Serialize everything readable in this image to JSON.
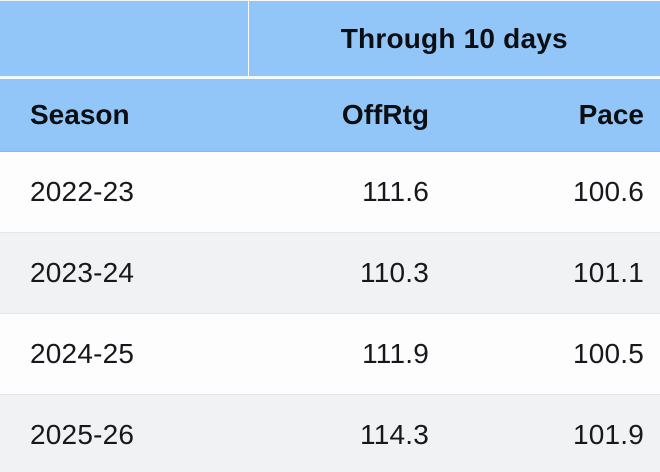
{
  "chart_data": {
    "type": "table",
    "title": "Through 10 days",
    "columns": [
      "Season",
      "OffRtg",
      "Pace"
    ],
    "rows": [
      [
        "2022-23",
        111.6,
        100.6
      ],
      [
        "2023-24",
        110.3,
        101.1
      ],
      [
        "2024-25",
        111.9,
        100.5
      ],
      [
        "2025-26",
        114.3,
        101.9
      ]
    ],
    "layout": {
      "spanner_spans_columns": [
        "OffRtg",
        "Pace"
      ],
      "season_column_align": "left",
      "numeric_columns_align": "right",
      "zebra_striping": true
    }
  },
  "colors": {
    "header_bg": "#92C6F8",
    "header_divider": "#F2F9FF",
    "row_bg": "#FDFDFE",
    "row_alt_bg": "#F1F2F3",
    "row_border": "#E5E7EA",
    "header_text": "#0D0E11",
    "data_text": "#17181C",
    "header_bottom_edge": "#84B9EC"
  }
}
